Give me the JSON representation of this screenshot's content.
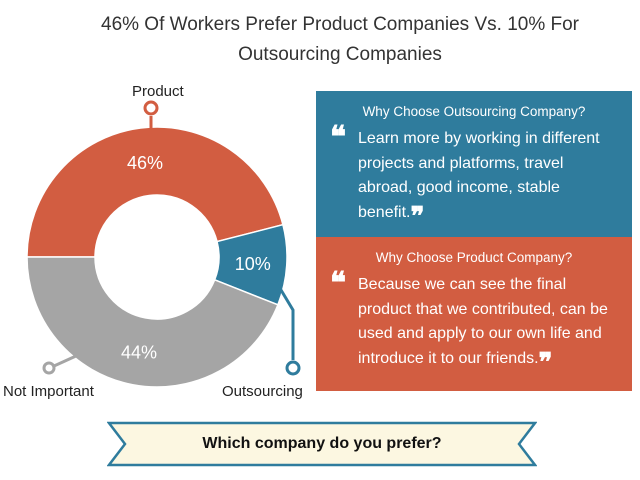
{
  "title": {
    "line1": "46% Of Workers Prefer Product Companies Vs. 10% For",
    "line2": "Outsourcing Companies"
  },
  "chart_data": {
    "type": "pie",
    "subtype": "donut",
    "categories": [
      "Product",
      "Outsourcing",
      "Not Important"
    ],
    "values": [
      46,
      10,
      44
    ],
    "value_labels": [
      "46%",
      "10%",
      "44%"
    ],
    "colors": [
      "#d25d41",
      "#2f7c9d",
      "#a5a5a5"
    ]
  },
  "outsourcing_box": {
    "heading": "Why Choose Outsourcing Company?",
    "quote_open": "❝",
    "text": "Learn more by working in different projects and platforms, travel abroad, good income, stable benefit.",
    "quote_close": "❞",
    "color": "#2f7c9d"
  },
  "product_box": {
    "heading": "Why Choose Product Company?",
    "quote_open": "❝",
    "text": "Because we can see the final product that we contributed, can be used and apply to our own life and introduce it to our friends.",
    "quote_close": "❞",
    "color": "#d25d41"
  },
  "banner": {
    "text": "Which company do you prefer?",
    "fill": "#fcf7e1",
    "border": "#2f7c9d"
  }
}
